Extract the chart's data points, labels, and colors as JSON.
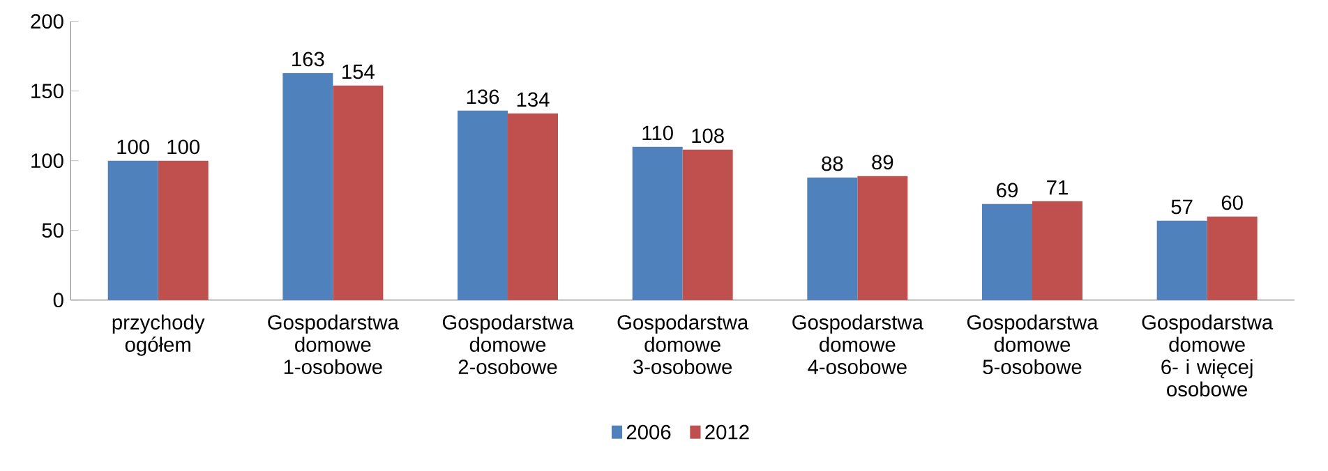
{
  "chart_data": {
    "type": "bar",
    "categories": [
      "przychody ogółem",
      "Gospodarstwa domowe 1-osobowe",
      "Gospodarstwa domowe 2-osobowe",
      "Gospodarstwa domowe 3-osobowe",
      "Gospodarstwa domowe 4-osobowe",
      "Gospodarstwa domowe 5-osobowe",
      "Gospodarstwa domowe 6- i więcej osobowe"
    ],
    "series": [
      {
        "name": "2006",
        "color": "#4f81bd",
        "values": [
          100,
          163,
          136,
          110,
          88,
          69,
          57
        ]
      },
      {
        "name": "2012",
        "color": "#c0504d",
        "values": [
          100,
          154,
          134,
          108,
          89,
          71,
          60
        ]
      }
    ],
    "ylim": [
      0,
      200
    ],
    "yticks": [
      0,
      50,
      100,
      150,
      200
    ],
    "data_labels": true,
    "legend": "bottom",
    "grid": false
  }
}
